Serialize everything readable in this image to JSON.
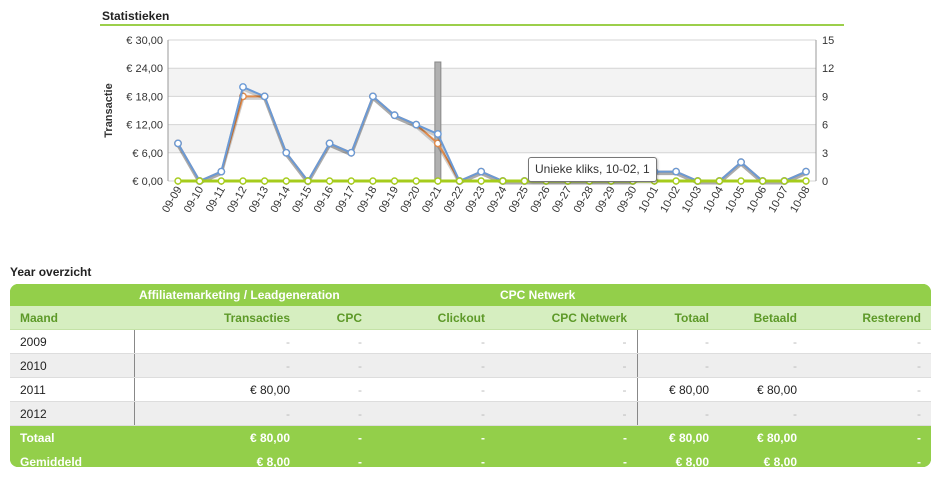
{
  "page": {
    "section_title": "Statistieken",
    "year_title": "Year overzicht",
    "tooltip": "Unieke kliks, 10-02, 1"
  },
  "chart_data": {
    "type": "line",
    "categories": [
      "09-09",
      "09-10",
      "09-11",
      "09-12",
      "09-13",
      "09-14",
      "09-15",
      "09-16",
      "09-17",
      "09-18",
      "09-19",
      "09-20",
      "09-21",
      "09-22",
      "09-23",
      "09-24",
      "09-25",
      "09-26",
      "09-27",
      "09-28",
      "09-29",
      "09-30",
      "10-01",
      "10-02",
      "10-03",
      "10-04",
      "10-05",
      "10-06",
      "10-07",
      "10-08"
    ],
    "ylabel": "Transactie",
    "y_left_ticks": [
      "€ 0,00",
      "€ 6,00",
      "€ 12,00",
      "€ 18,00",
      "€ 24,00",
      "€ 30,00"
    ],
    "y_left_range": [
      0,
      30
    ],
    "y_right_ticks": [
      "0",
      "3",
      "6",
      "9",
      "12",
      "15"
    ],
    "y_right_range": [
      0,
      15
    ],
    "grid": true,
    "highlight_index": 12,
    "series": [
      {
        "axis": "right",
        "color": "#e08a4a",
        "values": [
          4,
          0,
          1,
          9,
          9,
          3,
          0,
          4,
          3,
          9,
          7,
          6,
          4,
          0,
          1,
          0,
          0,
          0,
          0,
          0,
          0,
          0,
          1,
          1,
          0,
          0,
          2,
          0,
          0,
          1
        ]
      },
      {
        "axis": "right",
        "color": "#6a9ad6",
        "values": [
          4,
          0,
          1,
          10,
          9,
          3,
          0,
          4,
          3,
          9,
          7,
          6,
          5,
          0,
          1,
          0,
          0,
          0,
          0,
          0,
          0,
          0,
          1,
          1,
          0,
          0,
          2,
          0,
          0,
          1
        ]
      },
      {
        "axis": "left",
        "color": "#a6cc1c",
        "values": [
          0,
          0,
          0,
          0,
          0,
          0,
          0,
          0,
          0,
          0,
          0,
          0,
          0,
          0,
          0,
          0,
          0,
          0,
          0,
          0,
          0,
          0,
          0,
          0,
          0,
          0,
          0,
          0,
          0,
          0
        ]
      }
    ]
  },
  "table": {
    "group_headers": [
      "Affiliatemarketing / Leadgeneration",
      "CPC Netwerk"
    ],
    "columns": [
      "Maand",
      "Transacties",
      "CPC",
      "Clickout",
      "CPC Netwerk",
      "Totaal",
      "Betaald",
      "Resterend"
    ],
    "rows": [
      [
        "2009",
        "-",
        "-",
        "-",
        "-",
        "-",
        "-",
        "-"
      ],
      [
        "2010",
        "-",
        "-",
        "-",
        "-",
        "-",
        "-",
        "-"
      ],
      [
        "2011",
        "€ 80,00",
        "-",
        "-",
        "-",
        "€ 80,00",
        "€ 80,00",
        "-"
      ],
      [
        "2012",
        "-",
        "-",
        "-",
        "-",
        "-",
        "-",
        "-"
      ]
    ],
    "totals": [
      [
        "Totaal",
        "€ 80,00",
        "-",
        "-",
        "-",
        "€ 80,00",
        "€ 80,00",
        "-"
      ],
      [
        "Gemiddeld",
        "€ 8,00",
        "-",
        "-",
        "-",
        "€ 8,00",
        "€ 8,00",
        "-"
      ]
    ]
  }
}
